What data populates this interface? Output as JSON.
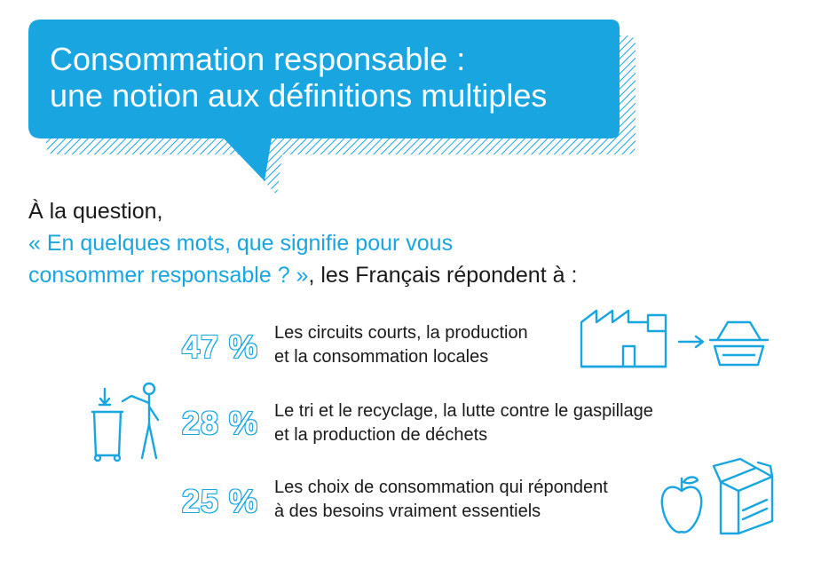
{
  "title": {
    "line1": "Consommation responsable :",
    "line2": "une notion aux définitions multiples"
  },
  "question": {
    "intro": "À la question,",
    "quote_line1": "« En quelques mots, que signifie pour vous",
    "quote_line2": "consommer responsable ? »",
    "tail": ", les Français répondent à :"
  },
  "colors": {
    "accent": "#19a6e0",
    "text": "#1a1a1a",
    "bubble_shadow": "#19a6e0"
  },
  "chart_data": {
    "type": "table",
    "rows": [
      {
        "value": 47,
        "label": "47 %",
        "text_line1": "Les circuits courts, la production",
        "text_line2": "et la consommation locales",
        "icon": "factory-to-basket-icon"
      },
      {
        "value": 28,
        "label": "28 %",
        "text_line1": "Le tri et le recyclage, la lutte contre le gaspillage",
        "text_line2": "et la production de déchets",
        "icon": "recycling-bin-person-icon"
      },
      {
        "value": 25,
        "label": "25 %",
        "text_line1": "Les choix de consommation qui répondent",
        "text_line2": "à des besoins vraiment essentiels",
        "icon": "apple-and-box-icon"
      }
    ]
  }
}
